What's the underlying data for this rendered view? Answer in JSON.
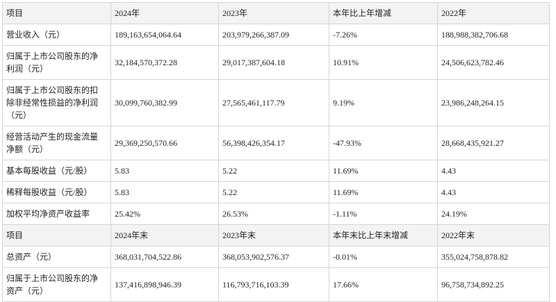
{
  "table": {
    "sections": [
      {
        "header": [
          "项目",
          "2024年",
          "2023年",
          "本年比上年增减",
          "2022年"
        ],
        "rows": [
          [
            "营业收入（元）",
            "189,163,654,064.64",
            "203,979,266,387.09",
            "-7.26%",
            "188,988,382,706.68"
          ],
          [
            "归属于上市公司股东的净利润（元）",
            "32,184,570,372.28",
            "29,017,387,604.18",
            "10.91%",
            "24,506,623,782.46"
          ],
          [
            "归属于上市公司股东的扣除非经常性损益的净利润（元）",
            "30,099,760,382.99",
            "27,565,461,117.79",
            "9.19%",
            "23,986,248,264.15"
          ],
          [
            "经营活动产生的现金流量净额（元）",
            "29,369,250,570.66",
            "56,398,426,354.17",
            "-47.93%",
            "28,668,435,921.27"
          ],
          [
            "基本每股收益（元/股）",
            "5.83",
            "5.22",
            "11.69%",
            "4.43"
          ],
          [
            "稀释每股收益（元/股）",
            "5.83",
            "5.22",
            "11.69%",
            "4.43"
          ],
          [
            "加权平均净资产收益率",
            "25.42%",
            "26.53%",
            "-1.11%",
            "24.19%"
          ]
        ]
      },
      {
        "header": [
          "项目",
          "2024年末",
          "2023年末",
          "本年末比上年末增减",
          "2022年末"
        ],
        "rows": [
          [
            "总资产（元）",
            "368,031,704,522.86",
            "368,053,902,576.37",
            "-0.01%",
            "355,024,758,878.82"
          ],
          [
            "归属于上市公司股东的净资产（元）",
            "137,416,898,946.39",
            "116,793,716,103.39",
            "17.66%",
            "96,758,734,892.25"
          ]
        ]
      }
    ]
  }
}
